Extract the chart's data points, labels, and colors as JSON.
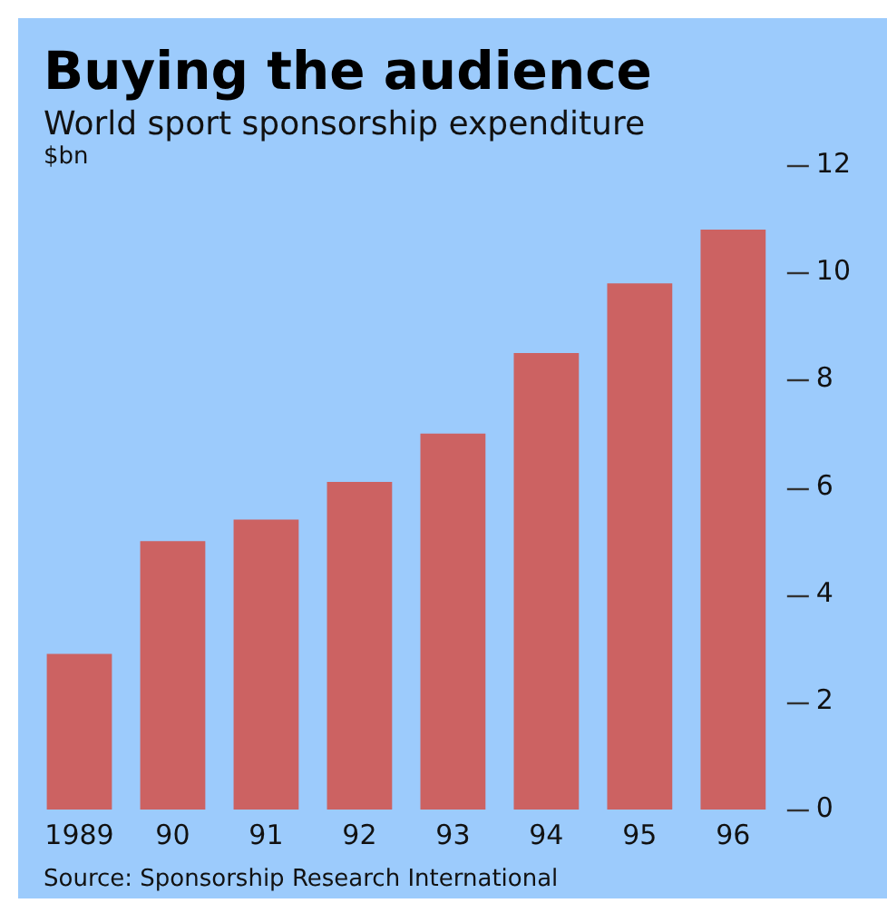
{
  "chart_data": {
    "type": "bar",
    "title": "Buying the audience",
    "subtitle": "World sport sponsorship expenditure",
    "ylabel": "$bn",
    "categories": [
      "1989",
      "90",
      "91",
      "92",
      "93",
      "94",
      "95",
      "96"
    ],
    "values": [
      2.9,
      5.0,
      5.4,
      6.1,
      7.0,
      8.5,
      9.8,
      10.8
    ],
    "color": "#cc6262",
    "ylim": [
      0,
      12
    ],
    "yticks": [
      0,
      2,
      4,
      6,
      8,
      10,
      12
    ],
    "grid": false,
    "legend": false,
    "annotations": [
      "Source: Sponsorship Research International"
    ]
  }
}
